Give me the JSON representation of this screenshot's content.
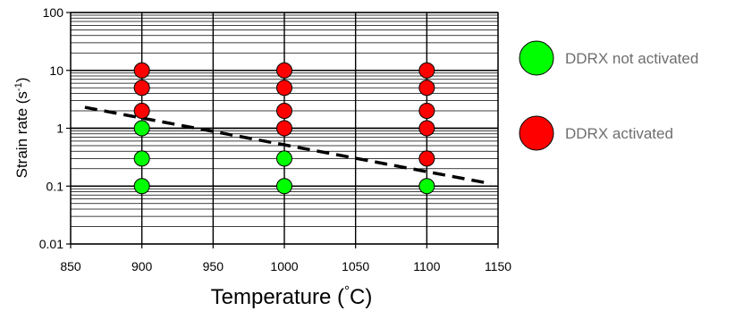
{
  "chart_data": {
    "type": "scatter",
    "title": "",
    "xlabel_main": "Temperature (",
    "xlabel_deg": "°",
    "xlabel_end": "C)",
    "ylabel_main": "Strain rate (s",
    "ylabel_sup": "-1",
    "ylabel_end": ")",
    "xlim": [
      850,
      1150
    ],
    "ylim": [
      0.01,
      100
    ],
    "yscale": "log",
    "x_ticks": [
      850,
      900,
      950,
      1000,
      1050,
      1100,
      1150
    ],
    "x_tick_labels": [
      "850",
      "900",
      "950",
      "1000",
      "1050",
      "1100",
      "1150"
    ],
    "y_ticks": [
      0.01,
      0.1,
      1,
      10,
      100
    ],
    "y_tick_labels": [
      "0.01",
      "0.1",
      "1",
      "10",
      "100"
    ],
    "grid": true,
    "legend_position": "right",
    "series": [
      {
        "name": "DDRX not activated",
        "color": "#00ff00",
        "points": [
          {
            "x": 900,
            "y": 0.1
          },
          {
            "x": 900,
            "y": 0.3
          },
          {
            "x": 900,
            "y": 1
          },
          {
            "x": 1000,
            "y": 0.1
          },
          {
            "x": 1000,
            "y": 0.3
          },
          {
            "x": 1100,
            "y": 0.1
          }
        ]
      },
      {
        "name": "DDRX activated",
        "color": "#ff0000",
        "points": [
          {
            "x": 900,
            "y": 2
          },
          {
            "x": 900,
            "y": 5
          },
          {
            "x": 900,
            "y": 10
          },
          {
            "x": 1000,
            "y": 1
          },
          {
            "x": 1000,
            "y": 2
          },
          {
            "x": 1000,
            "y": 5
          },
          {
            "x": 1000,
            "y": 10
          },
          {
            "x": 1100,
            "y": 0.3
          },
          {
            "x": 1100,
            "y": 1
          },
          {
            "x": 1100,
            "y": 2
          },
          {
            "x": 1100,
            "y": 5
          },
          {
            "x": 1100,
            "y": 10
          }
        ]
      }
    ],
    "boundary_line": {
      "style": "dashed",
      "color": "#000000",
      "x": [
        860,
        1145
      ],
      "y": [
        2.3,
        0.11
      ]
    }
  }
}
